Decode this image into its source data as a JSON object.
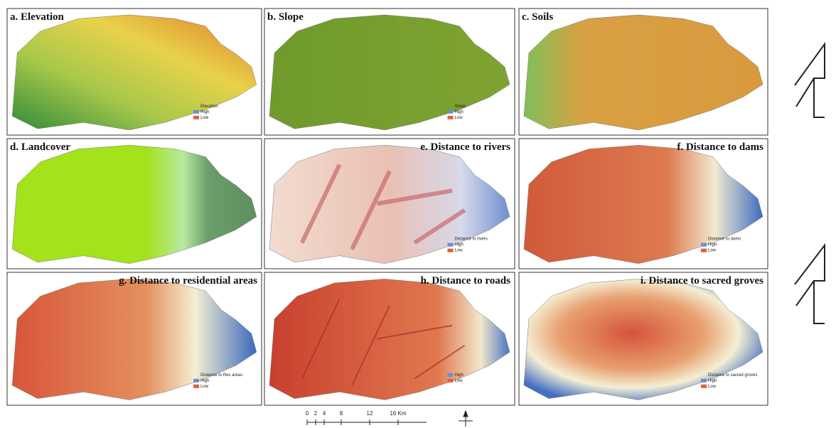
{
  "panels": [
    {
      "title": "a. Elevation",
      "legend": [
        "Elevation",
        "High",
        "Low"
      ]
    },
    {
      "title": "b. Slope",
      "legend": [
        "Slope",
        "High",
        "Low"
      ]
    },
    {
      "title": "c. Soils",
      "legend": []
    },
    {
      "title": "d. Landcover",
      "legend": []
    },
    {
      "title": "e. Distance to rivers",
      "legend": [
        "Distance to rivers",
        "High",
        "Low"
      ]
    },
    {
      "title": "f. Distance to dams",
      "legend": [
        "Distance to dams",
        "High",
        "Low"
      ]
    },
    {
      "title": "g. Distance to residential areas",
      "legend": [
        "Distance to Res areas",
        "High",
        "Low"
      ]
    },
    {
      "title": "h. Distance to roads",
      "legend": [
        "High",
        "Low"
      ]
    },
    {
      "title": "i. Distance to sacred groves",
      "legend": [
        "Distance to sacred groves",
        "High",
        "Low"
      ]
    }
  ],
  "scale_bar": [
    "0",
    "2",
    "4",
    "8",
    "12",
    "16 Km"
  ]
}
